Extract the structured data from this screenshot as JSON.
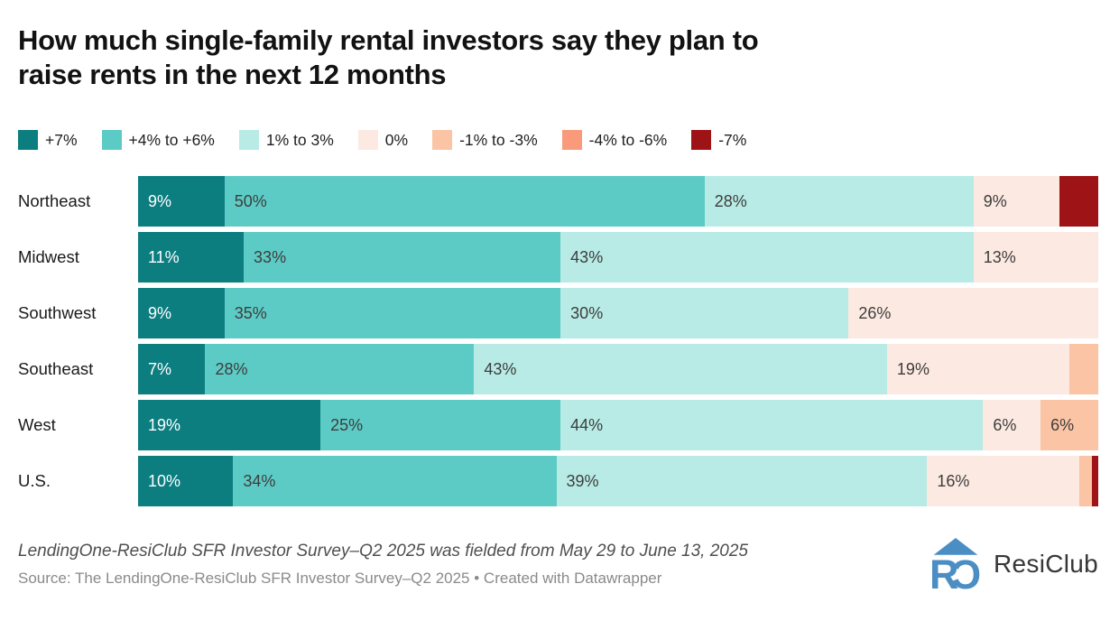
{
  "header": {
    "title_lines": [
      "How much single-family rental investors say they plan to",
      "raise rents in the next 12 months"
    ]
  },
  "palette": {
    "+7%": "#0d7e80",
    "+4% to +6%": "#5dcbc5",
    "1% to 3%": "#b8ebe5",
    "0%": "#fce9e1",
    "-1% to -3%": "#fbc4a5",
    "-4% to -6%": "#f99a7b",
    "-7%": "#9e1315"
  },
  "chart_data": {
    "type": "bar",
    "variant": "stacked-horizontal-100percent",
    "title": "How much single-family rental investors say they plan to raise rents in the next 12 months",
    "categories": [
      "Northeast",
      "Midwest",
      "Southwest",
      "Southeast",
      "West",
      "U.S."
    ],
    "series_keys": [
      "+7%",
      "+4% to +6%",
      "1% to 3%",
      "0%",
      "-1% to -3%",
      "-4% to -6%",
      "-7%"
    ],
    "legend_position": "top",
    "rows": [
      {
        "region": "Northeast",
        "segments": [
          {
            "category": "+7%",
            "value": 9,
            "label": "9%"
          },
          {
            "category": "+4% to +6%",
            "value": 50,
            "label": "50%"
          },
          {
            "category": "1% to 3%",
            "value": 28,
            "label": "28%"
          },
          {
            "category": "0%",
            "value": 9,
            "label": "9%"
          },
          {
            "category": "-7%",
            "value": 4,
            "label": ""
          }
        ]
      },
      {
        "region": "Midwest",
        "segments": [
          {
            "category": "+7%",
            "value": 11,
            "label": "11%"
          },
          {
            "category": "+4% to +6%",
            "value": 33,
            "label": "33%"
          },
          {
            "category": "1% to 3%",
            "value": 43,
            "label": "43%"
          },
          {
            "category": "0%",
            "value": 13,
            "label": "13%"
          }
        ]
      },
      {
        "region": "Southwest",
        "segments": [
          {
            "category": "+7%",
            "value": 9,
            "label": "9%"
          },
          {
            "category": "+4% to +6%",
            "value": 35,
            "label": "35%"
          },
          {
            "category": "1% to 3%",
            "value": 30,
            "label": "30%"
          },
          {
            "category": "0%",
            "value": 26,
            "label": "26%"
          }
        ]
      },
      {
        "region": "Southeast",
        "segments": [
          {
            "category": "+7%",
            "value": 7,
            "label": "7%"
          },
          {
            "category": "+4% to +6%",
            "value": 28,
            "label": "28%"
          },
          {
            "category": "1% to 3%",
            "value": 43,
            "label": "43%"
          },
          {
            "category": "0%",
            "value": 19,
            "label": "19%"
          },
          {
            "category": "-1% to -3%",
            "value": 3,
            "label": ""
          }
        ]
      },
      {
        "region": "West",
        "segments": [
          {
            "category": "+7%",
            "value": 19,
            "label": "19%"
          },
          {
            "category": "+4% to +6%",
            "value": 25,
            "label": "25%"
          },
          {
            "category": "1% to 3%",
            "value": 44,
            "label": "44%"
          },
          {
            "category": "0%",
            "value": 6,
            "label": "6%"
          },
          {
            "category": "-1% to -3%",
            "value": 6,
            "label": "6%"
          }
        ]
      },
      {
        "region": "U.S.",
        "segments": [
          {
            "category": "+7%",
            "value": 10,
            "label": "10%"
          },
          {
            "category": "+4% to +6%",
            "value": 34,
            "label": "34%"
          },
          {
            "category": "1% to 3%",
            "value": 39,
            "label": "39%"
          },
          {
            "category": "0%",
            "value": 16,
            "label": "16%"
          },
          {
            "category": "-1% to -3%",
            "value": 1.3,
            "label": ""
          },
          {
            "category": "-7%",
            "value": 0.7,
            "label": ""
          }
        ]
      }
    ]
  },
  "footer": {
    "note": "LendingOne-ResiClub SFR Investor Survey–Q2 2025 was fielded from May 29 to June 13, 2025",
    "source_prefix": "Source: The LendingOne-ResiClub SFR Investor Survey–Q2 2025 • ",
    "source_link": "Created with Datawrapper",
    "brand": "ResiClub",
    "logo_color": "#4b8ec4"
  }
}
